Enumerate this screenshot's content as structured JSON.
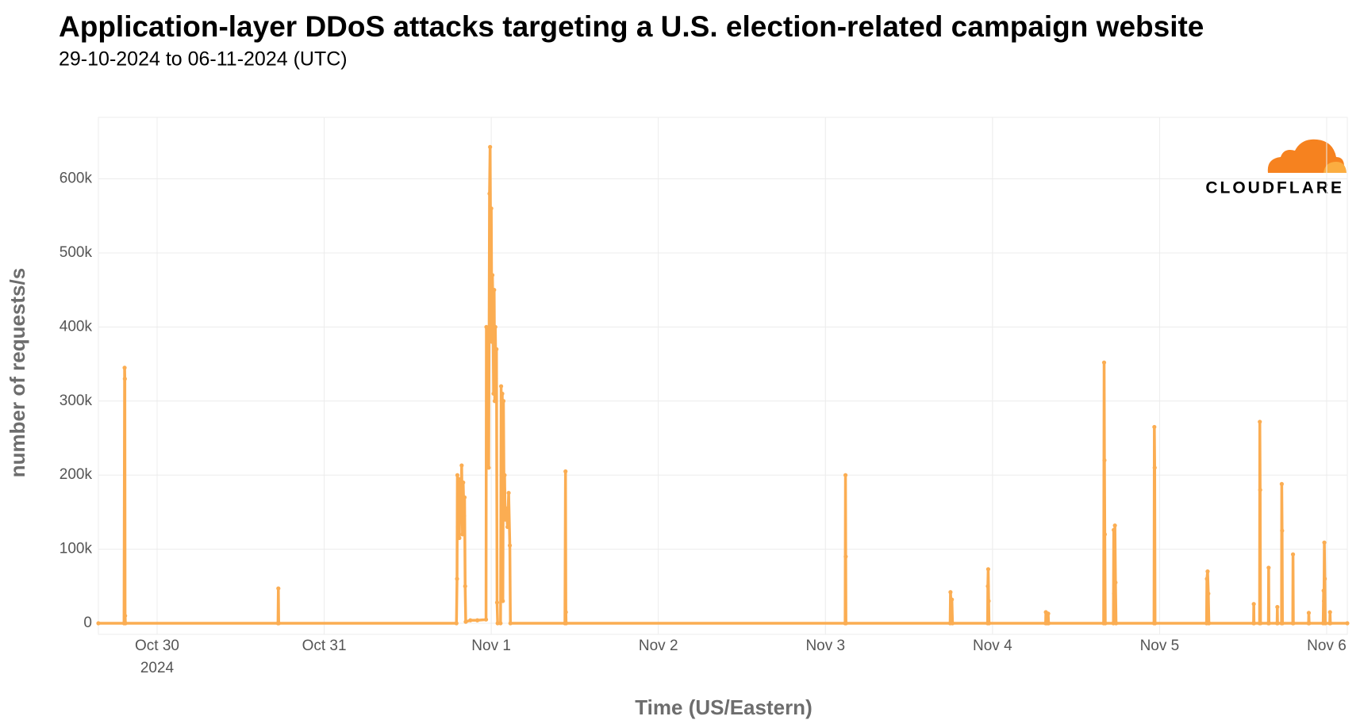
{
  "chart_data": {
    "type": "line",
    "title": "Application-layer DDoS attacks targeting a U.S. election-related campaign website",
    "subtitle": "29-10-2024 to 06-11-2024 (UTC)",
    "x_label": "Time (US/Eastern)",
    "y_label": "number of requests/s",
    "logo": "CLOUDFLARE",
    "grid": true,
    "xlim": [
      "2024-10-29T15:34",
      "2024-11-06T02:58"
    ],
    "ylim": [
      -15000,
      683000
    ],
    "xticks": [
      {
        "value": "2024-10-30T00:00",
        "label": "Oct 30",
        "sublabel": "2024"
      },
      {
        "value": "2024-10-31T00:00",
        "label": "Oct 31"
      },
      {
        "value": "2024-11-01T00:00",
        "label": "Nov 1"
      },
      {
        "value": "2024-11-02T00:00",
        "label": "Nov 2"
      },
      {
        "value": "2024-11-03T00:00",
        "label": "Nov 3"
      },
      {
        "value": "2024-11-04T00:00",
        "label": "Nov 4"
      },
      {
        "value": "2024-11-05T00:00",
        "label": "Nov 5"
      },
      {
        "value": "2024-11-06T00:00",
        "label": "Nov 6"
      }
    ],
    "yticks": [
      0,
      {
        "value": 100000,
        "label": "100k"
      },
      {
        "value": 200000,
        "label": "200k"
      },
      {
        "value": 300000,
        "label": "300k"
      },
      {
        "value": 400000,
        "label": "400k"
      },
      {
        "value": 500000,
        "label": "500k"
      },
      {
        "value": 600000,
        "label": "600k"
      }
    ],
    "x": [
      "2024-10-29T15:34",
      "2024-10-29T19:15",
      "2024-10-29T19:20",
      "2024-10-29T19:22",
      "2024-10-29T19:24",
      "2024-10-29T19:27",
      "2024-10-30T17:22",
      "2024-10-30T17:25",
      "2024-10-30T17:28",
      "2024-10-31T19:00",
      "2024-10-31T19:05",
      "2024-10-31T19:08",
      "2024-10-31T19:12",
      "2024-10-31T19:18",
      "2024-10-31T19:25",
      "2024-10-31T19:32",
      "2024-10-31T19:38",
      "2024-10-31T19:45",
      "2024-10-31T19:52",
      "2024-10-31T19:58",
      "2024-10-31T20:05",
      "2024-10-31T20:10",
      "2024-10-31T20:15",
      "2024-10-31T20:20",
      "2024-10-31T21:00",
      "2024-10-31T22:00",
      "2024-10-31T23:15",
      "2024-10-31T23:18",
      "2024-10-31T23:25",
      "2024-10-31T23:32",
      "2024-10-31T23:38",
      "2024-10-31T23:45",
      "2024-10-31T23:50",
      "2024-10-31T23:55",
      "2024-11-01T00:00",
      "2024-11-01T00:05",
      "2024-11-01T00:10",
      "2024-11-01T00:15",
      "2024-11-01T00:20",
      "2024-11-01T00:25",
      "2024-11-01T00:30",
      "2024-11-01T00:35",
      "2024-11-01T00:40",
      "2024-11-01T00:45",
      "2024-11-01T00:50",
      "2024-11-01T00:55",
      "2024-11-01T01:20",
      "2024-11-01T01:25",
      "2024-11-01T01:30",
      "2024-11-01T01:35",
      "2024-11-01T01:40",
      "2024-11-01T01:45",
      "2024-11-01T01:50",
      "2024-11-01T01:55",
      "2024-11-01T02:00",
      "2024-11-01T02:10",
      "2024-11-01T02:20",
      "2024-11-01T02:30",
      "2024-11-01T02:40",
      "2024-11-01T02:45",
      "2024-11-01T10:35",
      "2024-11-01T10:40",
      "2024-11-01T10:43",
      "2024-11-01T10:45",
      "2024-11-03T02:50",
      "2024-11-03T02:53",
      "2024-11-03T02:55",
      "2024-11-03T02:57",
      "2024-11-03T17:55",
      "2024-11-03T17:58",
      "2024-11-03T18:05",
      "2024-11-03T18:10",
      "2024-11-03T18:15",
      "2024-11-03T23:18",
      "2024-11-03T23:20",
      "2024-11-03T23:23",
      "2024-11-03T23:27",
      "2024-11-03T23:30",
      "2024-11-04T07:38",
      "2024-11-04T07:40",
      "2024-11-04T07:45",
      "2024-11-04T07:58",
      "2024-11-04T08:00",
      "2024-11-04T08:03",
      "2024-11-04T15:58",
      "2024-11-04T16:02",
      "2024-11-04T16:05",
      "2024-11-04T16:08",
      "2024-11-04T16:12",
      "2024-11-04T17:22",
      "2024-11-04T17:25",
      "2024-11-04T17:28",
      "2024-11-04T17:35",
      "2024-11-04T17:40",
      "2024-11-04T17:45",
      "2024-11-04T23:12",
      "2024-11-04T23:15",
      "2024-11-04T23:18",
      "2024-11-04T23:21",
      "2024-11-05T06:45",
      "2024-11-05T06:48",
      "2024-11-05T06:54",
      "2024-11-05T07:00",
      "2024-11-05T07:05",
      "2024-11-05T13:30",
      "2024-11-05T13:32",
      "2024-11-05T13:34",
      "2024-11-05T14:22",
      "2024-11-05T14:24",
      "2024-11-05T14:27",
      "2024-11-05T14:30",
      "2024-11-05T15:38",
      "2024-11-05T15:40",
      "2024-11-05T15:43",
      "2024-11-05T16:53",
      "2024-11-05T16:55",
      "2024-11-05T16:57",
      "2024-11-05T17:31",
      "2024-11-05T17:33",
      "2024-11-05T17:36",
      "2024-11-05T17:39",
      "2024-11-05T19:08",
      "2024-11-05T19:10",
      "2024-11-05T19:13",
      "2024-11-05T21:24",
      "2024-11-05T21:26",
      "2024-11-05T21:29",
      "2024-11-05T23:30",
      "2024-11-05T23:34",
      "2024-11-05T23:37",
      "2024-11-05T23:40",
      "2024-11-05T23:44",
      "2024-11-05T23:48",
      "2024-11-06T00:27",
      "2024-11-06T00:29",
      "2024-11-06T00:32",
      "2024-11-06T02:58"
    ],
    "series": [
      {
        "name": "number of requests/s",
        "color": "#fbad52",
        "values": [
          0,
          0,
          345000,
          330000,
          10000,
          0,
          0,
          47000,
          0,
          0,
          60000,
          200000,
          130000,
          195000,
          115000,
          190000,
          140000,
          213000,
          120000,
          190000,
          145000,
          170000,
          50000,
          2000,
          4000,
          4000,
          5000,
          400000,
          250000,
          360000,
          210000,
          580000,
          643000,
          500000,
          560000,
          380000,
          470000,
          420000,
          310000,
          450000,
          300000,
          400000,
          330000,
          370000,
          28000,
          0,
          0,
          320000,
          200000,
          310000,
          30000,
          300000,
          180000,
          200000,
          140000,
          155000,
          130000,
          176000,
          105000,
          0,
          0,
          205000,
          15000,
          0,
          0,
          200000,
          90000,
          0,
          0,
          42000,
          20000,
          32000,
          0,
          0,
          50000,
          73000,
          30000,
          0,
          0,
          15000,
          0,
          0,
          13000,
          0,
          0,
          352000,
          220000,
          120000,
          0,
          0,
          126000,
          40000,
          132000,
          55000,
          0,
          0,
          265000,
          210000,
          0,
          0,
          60000,
          70000,
          40000,
          0,
          0,
          26000,
          0,
          0,
          272000,
          180000,
          0,
          0,
          75000,
          0,
          0,
          22000,
          0,
          0,
          188000,
          125000,
          0,
          0,
          93000,
          0,
          0,
          14000,
          0,
          0,
          44000,
          30000,
          109000,
          60000,
          0,
          0,
          15000,
          0,
          0
        ]
      }
    ]
  }
}
